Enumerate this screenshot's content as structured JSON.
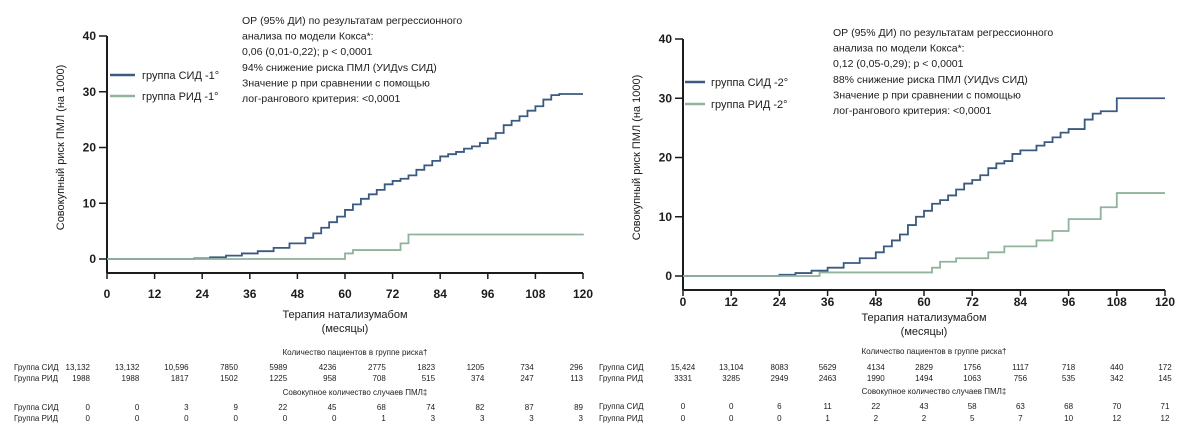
{
  "chart_data": [
    {
      "type": "line",
      "ylabel": "Совокупный риск ПМЛ (на 1000)",
      "xlabel_line1": "Терапия натализумабом",
      "xlabel_line2": "(месяцы)",
      "xlim": [
        0,
        120
      ],
      "ylim": [
        0,
        40
      ],
      "xticks": [
        "0",
        "12",
        "24",
        "36",
        "48",
        "60",
        "72",
        "84",
        "96",
        "108",
        "120"
      ],
      "yticks": [
        "0",
        "10",
        "20",
        "30",
        "40"
      ],
      "annotation": [
        "ОР (95% ДИ) по результатам регрессионного",
        "анализа по модели Кокса*:",
        "0,06 (0,01-0,22); p < 0,0001",
        "94% снижение риска ПМЛ (УИДvs СИД)",
        "Значение p при сравнении с помощью",
        "лог-рангового критерия: <0,0001"
      ],
      "series": [
        {
          "name": "группа СИД  -1°",
          "color": "#3a5a80",
          "x": [
            0,
            22,
            26,
            30,
            34,
            38,
            42,
            46,
            50,
            52,
            54,
            56,
            58,
            60,
            62,
            64,
            66,
            68,
            70,
            72,
            74,
            76,
            78,
            80,
            82,
            84,
            86,
            88,
            90,
            92,
            94,
            96,
            98,
            100,
            102,
            104,
            106,
            108,
            110,
            112,
            114,
            116,
            118,
            120
          ],
          "y": [
            0,
            0.1,
            0.3,
            0.6,
            1.0,
            1.4,
            2.0,
            2.8,
            3.8,
            4.6,
            5.6,
            6.6,
            7.6,
            8.8,
            9.8,
            10.8,
            11.6,
            12.4,
            13.4,
            14.0,
            14.4,
            15.0,
            16.0,
            16.8,
            17.6,
            18.4,
            18.8,
            19.2,
            19.8,
            20.2,
            20.8,
            21.6,
            22.6,
            24.0,
            24.8,
            25.6,
            26.6,
            27.4,
            28.6,
            29.4,
            29.6,
            29.6,
            29.6,
            29.6
          ]
        },
        {
          "name": "группа РИД -1°",
          "color": "#8fb39b",
          "x": [
            0,
            48,
            58,
            60,
            62,
            72,
            74,
            76,
            80,
            120
          ],
          "y": [
            0,
            0,
            0,
            1.0,
            1.6,
            1.6,
            2.8,
            4.4,
            4.4,
            4.5
          ]
        }
      ],
      "table": {
        "patients_header": "Количество пациентов в группе риска†",
        "cases_header": "Совокупное количество случаев ПМЛ‡",
        "row_labels": [
          "Группа СИД",
          "Группа РИД"
        ],
        "patients": [
          [
            "13,132",
            "13,132",
            "10,596",
            "7850",
            "5989",
            "4236",
            "2775",
            "1823",
            "1205",
            "734",
            "296"
          ],
          [
            "1988",
            "1988",
            "1817",
            "1502",
            "1225",
            "958",
            "708",
            "515",
            "374",
            "247",
            "113"
          ]
        ],
        "cases": [
          [
            "0",
            "0",
            "3",
            "9",
            "22",
            "45",
            "68",
            "74",
            "82",
            "87",
            "89"
          ],
          [
            "0",
            "0",
            "0",
            "0",
            "0",
            "0",
            "1",
            "3",
            "3",
            "3",
            "3"
          ]
        ]
      }
    },
    {
      "type": "line",
      "ylabel": "Совокупный риск ПМЛ   (на 1000)",
      "xlabel_line1": "Терапия натализумабом",
      "xlabel_line2": "(месяцы)",
      "xlim": [
        0,
        120
      ],
      "ylim": [
        0,
        40
      ],
      "xticks": [
        "0",
        "12",
        "24",
        "36",
        "48",
        "60",
        "72",
        "84",
        "96",
        "108",
        "120"
      ],
      "yticks": [
        "0",
        "10",
        "20",
        "30",
        "40"
      ],
      "annotation": [
        "ОР (95% ДИ) по результатам регрессионного",
        "анализа по модели Кокса*:",
        "0,12 (0,05-0,29); p < 0,0001",
        "88% снижение риска ПМЛ (УИДvs СИД)",
        "Значение p при сравнении с помощью",
        "лог-рангового критерия: <0,0001"
      ],
      "series": [
        {
          "name": "группа СИД  -2°",
          "color": "#3a5a80",
          "x": [
            0,
            24,
            28,
            32,
            36,
            40,
            44,
            48,
            50,
            52,
            54,
            56,
            58,
            60,
            62,
            64,
            66,
            68,
            70,
            72,
            74,
            76,
            78,
            80,
            82,
            84,
            86,
            88,
            90,
            92,
            94,
            96,
            98,
            100,
            102,
            104,
            106,
            108,
            120
          ],
          "y": [
            0,
            0.2,
            0.5,
            0.9,
            1.4,
            2.2,
            3.0,
            4.0,
            5.0,
            6.0,
            7.0,
            8.6,
            10.0,
            11.0,
            12.2,
            12.8,
            13.6,
            14.6,
            15.6,
            16.2,
            17.0,
            18.2,
            19.0,
            19.4,
            20.6,
            21.2,
            21.2,
            22.0,
            22.6,
            23.4,
            24.2,
            24.8,
            24.8,
            26.4,
            27.4,
            27.8,
            27.8,
            30.0,
            30.0
          ]
        },
        {
          "name": "группа РИД  -2°",
          "color": "#8fb39b",
          "x": [
            0,
            32,
            34,
            48,
            62,
            64,
            68,
            72,
            76,
            80,
            86,
            88,
            92,
            96,
            100,
            104,
            106,
            108,
            120
          ],
          "y": [
            0,
            0,
            0.6,
            0.6,
            1.4,
            2.4,
            3.0,
            3.0,
            4.0,
            5.0,
            5.0,
            6.0,
            7.6,
            9.6,
            9.6,
            11.6,
            11.6,
            14.0,
            14.0
          ]
        }
      ],
      "table": {
        "patients_header": "Количество пациентов в группе риска†",
        "cases_header": "Совокупное количество случаев ПМЛ‡",
        "row_labels": [
          "Группа СИД",
          "Группа РИД"
        ],
        "patients": [
          [
            "15,424",
            "13,104",
            "8083",
            "5629",
            "4134",
            "2829",
            "1756",
            "1117",
            "718",
            "440",
            "172"
          ],
          [
            "3331",
            "3285",
            "2949",
            "2463",
            "1990",
            "1494",
            "1063",
            "756",
            "535",
            "342",
            "145"
          ]
        ],
        "cases": [
          [
            "0",
            "0",
            "6",
            "11",
            "22",
            "43",
            "58",
            "63",
            "68",
            "70",
            "71"
          ],
          [
            "0",
            "0",
            "0",
            "1",
            "2",
            "2",
            "5",
            "7",
            "10",
            "12",
            "12"
          ]
        ]
      }
    }
  ]
}
